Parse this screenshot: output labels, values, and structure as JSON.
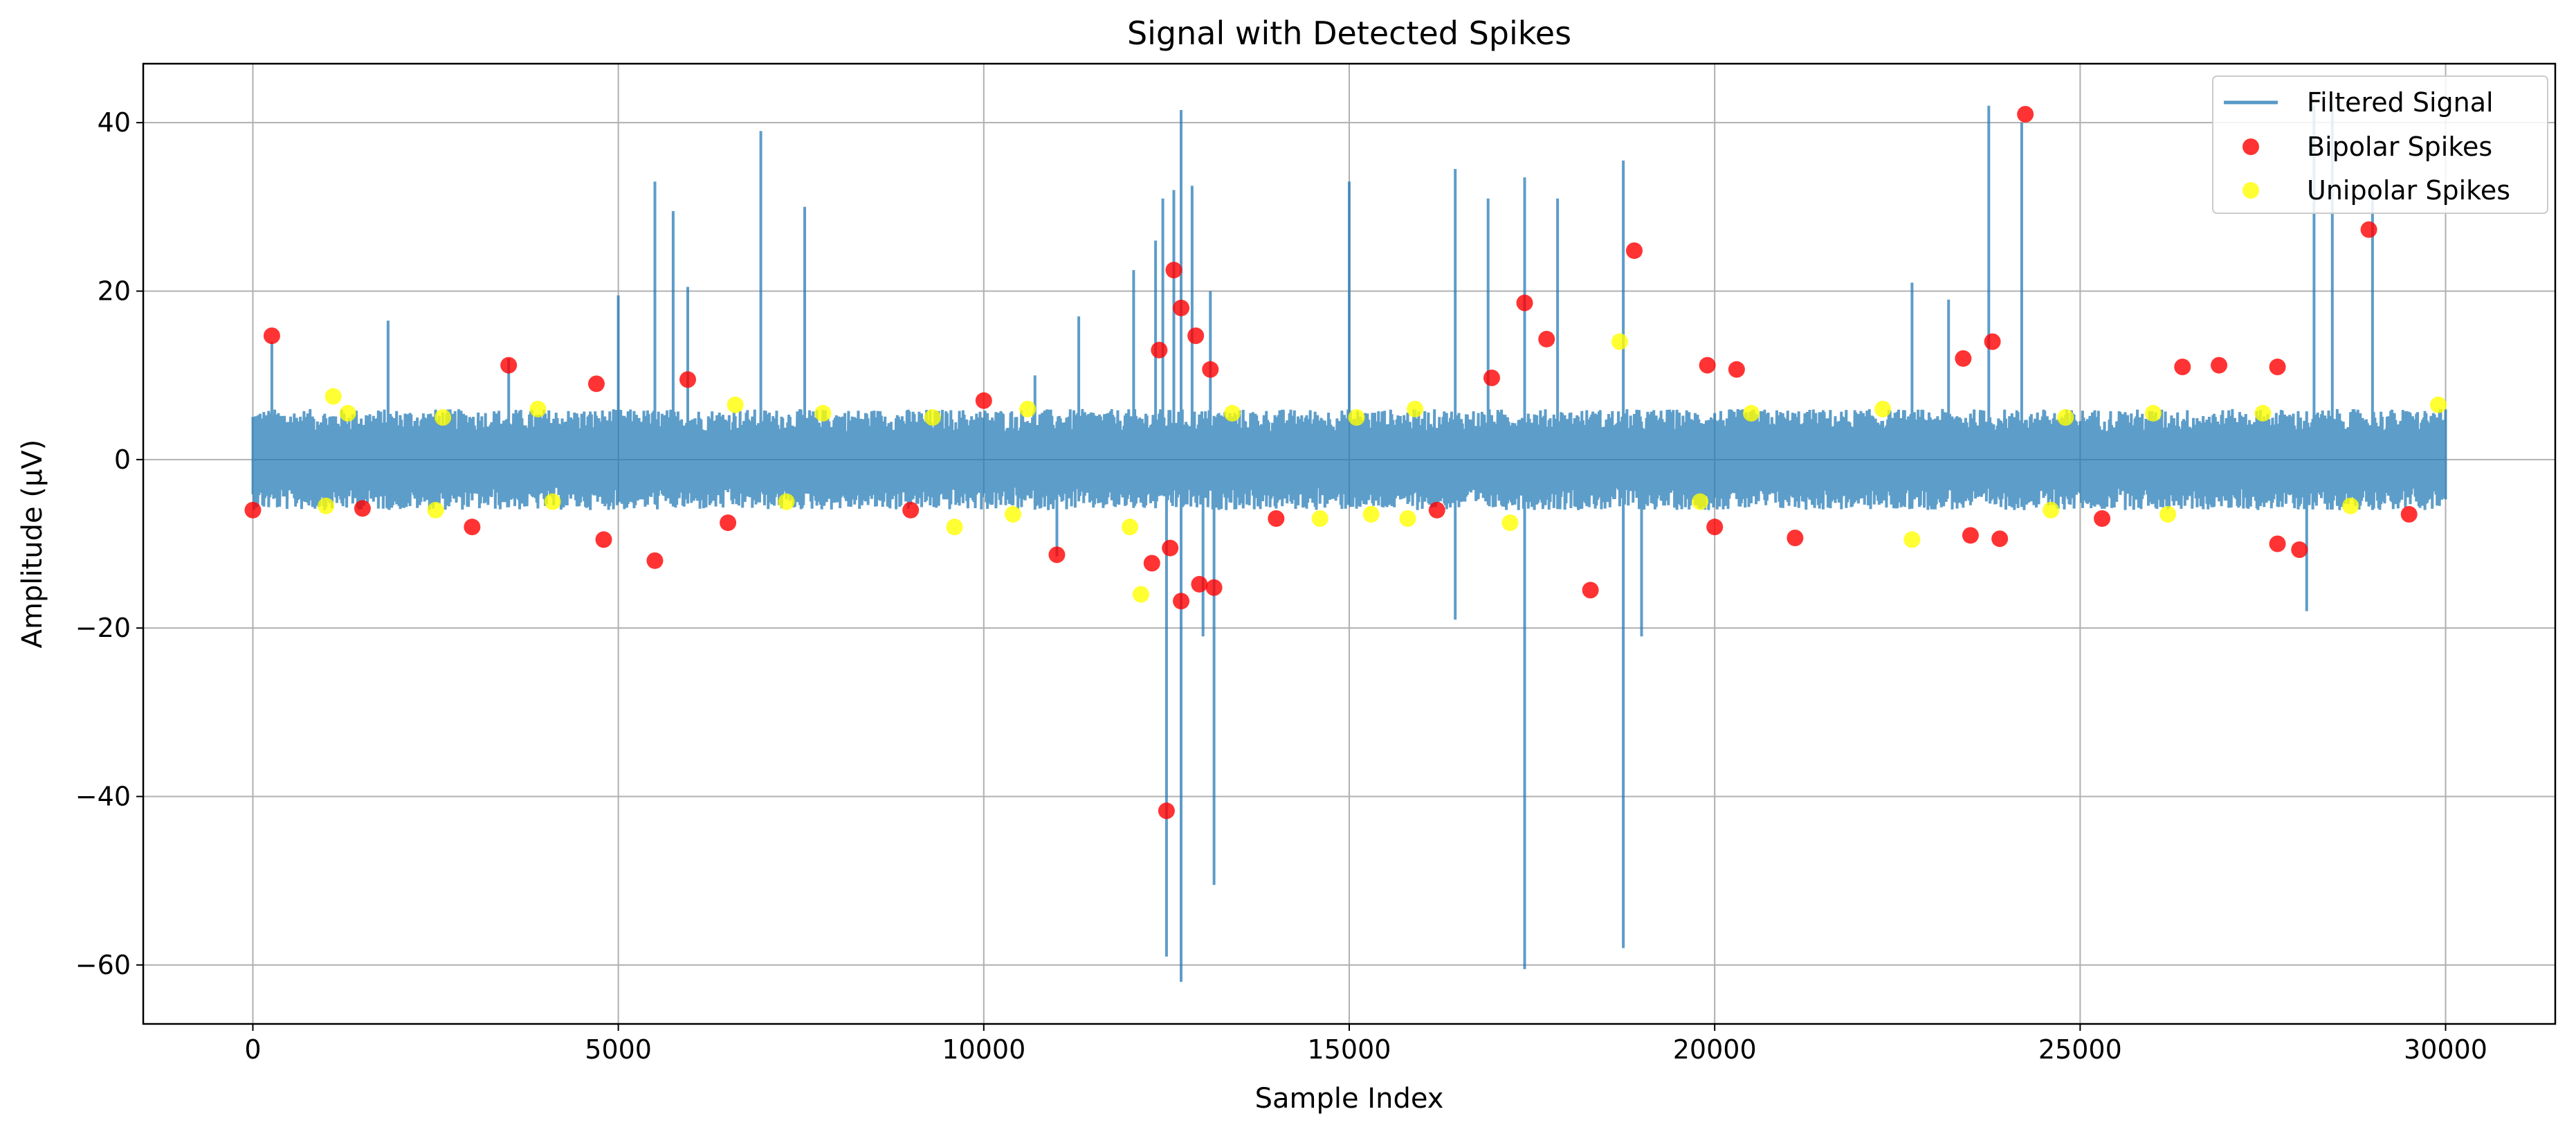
{
  "chart_data": {
    "type": "line",
    "title": "Signal with Detected Spikes",
    "xlabel": "Sample Index",
    "ylabel": "Amplitude (µV)",
    "xlim": [
      -1500,
      31500
    ],
    "ylim": [
      -67,
      47
    ],
    "xticks": [
      0,
      5000,
      10000,
      15000,
      20000,
      25000,
      30000
    ],
    "yticks": [
      -60,
      -40,
      -20,
      0,
      20,
      40
    ],
    "xtick_labels": [
      "0",
      "5000",
      "10000",
      "15000",
      "20000",
      "25000",
      "30000"
    ],
    "ytick_labels": [
      "−60",
      "−40",
      "−20",
      "0",
      "20",
      "40"
    ],
    "grid": true,
    "legend_position": "top-right",
    "colors": {
      "signal": "#1f77b4",
      "bipolar": "#ff0000",
      "unipolar": "#ffff00",
      "grid": "#b0b0b0"
    },
    "series": [
      {
        "name": "Filtered Signal",
        "kind": "line",
        "n_samples": 30000,
        "noise_band": [
          -6,
          6
        ],
        "peaks": [
          [
            260,
            14
          ],
          [
            1850,
            16.5
          ],
          [
            3500,
            12
          ],
          [
            5000,
            19.5
          ],
          [
            5500,
            33
          ],
          [
            5750,
            29.5
          ],
          [
            5950,
            20.5
          ],
          [
            6950,
            39
          ],
          [
            7550,
            30
          ],
          [
            10700,
            10
          ],
          [
            11300,
            17
          ],
          [
            12050,
            22.5
          ],
          [
            12350,
            26
          ],
          [
            12450,
            31
          ],
          [
            12600,
            32
          ],
          [
            12700,
            41.5
          ],
          [
            12850,
            32.5
          ],
          [
            13100,
            20
          ],
          [
            15000,
            33
          ],
          [
            16450,
            34.5
          ],
          [
            16900,
            31
          ],
          [
            17400,
            33.5
          ],
          [
            17850,
            31
          ],
          [
            18750,
            35.5
          ],
          [
            22700,
            21
          ],
          [
            23200,
            19
          ],
          [
            23750,
            42
          ],
          [
            24200,
            40
          ],
          [
            28200,
            42
          ],
          [
            28450,
            42
          ],
          [
            29000,
            32
          ],
          [
            12500,
            -59
          ],
          [
            12700,
            -62
          ],
          [
            13150,
            -50.5
          ],
          [
            13000,
            -21
          ],
          [
            11000,
            -11.5
          ],
          [
            17400,
            -60.5
          ],
          [
            18750,
            -58
          ],
          [
            16450,
            -19
          ],
          [
            19000,
            -21
          ],
          [
            28100,
            -18
          ]
        ]
      },
      {
        "name": "Bipolar Spikes",
        "kind": "scatter",
        "points": [
          [
            260,
            14.7
          ],
          [
            3500,
            11.2
          ],
          [
            4700,
            9
          ],
          [
            5950,
            9.5
          ],
          [
            10000,
            7
          ],
          [
            12400,
            13
          ],
          [
            12600,
            22.5
          ],
          [
            12700,
            18
          ],
          [
            12900,
            14.7
          ],
          [
            13100,
            10.7
          ],
          [
            16950,
            9.7
          ],
          [
            17400,
            18.6
          ],
          [
            17700,
            14.3
          ],
          [
            18900,
            24.8
          ],
          [
            19900,
            11.2
          ],
          [
            20300,
            10.7
          ],
          [
            23400,
            12
          ],
          [
            23800,
            14
          ],
          [
            24250,
            41
          ],
          [
            26400,
            11
          ],
          [
            26900,
            11.2
          ],
          [
            27700,
            11
          ],
          [
            28950,
            27.3
          ],
          [
            5500,
            -12
          ],
          [
            4800,
            -9.5
          ],
          [
            3000,
            -8
          ],
          [
            11000,
            -11.3
          ],
          [
            12300,
            -12.3
          ],
          [
            12500,
            -41.7
          ],
          [
            12550,
            -10.5
          ],
          [
            12700,
            -16.8
          ],
          [
            12950,
            -14.8
          ],
          [
            13150,
            -15.2
          ],
          [
            18300,
            -15.5
          ],
          [
            21100,
            -9.3
          ],
          [
            23500,
            -9
          ],
          [
            23900,
            -9.4
          ],
          [
            27700,
            -10
          ],
          [
            28000,
            -10.7
          ],
          [
            0,
            -6
          ],
          [
            1500,
            -5.8
          ],
          [
            6500,
            -7.5
          ],
          [
            9000,
            -6
          ],
          [
            14000,
            -7
          ],
          [
            16200,
            -6
          ],
          [
            20000,
            -8
          ],
          [
            25300,
            -7
          ],
          [
            29500,
            -6.5
          ]
        ]
      },
      {
        "name": "Unipolar Spikes",
        "kind": "scatter",
        "points": [
          [
            1100,
            7.5
          ],
          [
            1300,
            5.5
          ],
          [
            2600,
            5
          ],
          [
            3900,
            6
          ],
          [
            6600,
            6.5
          ],
          [
            7800,
            5.5
          ],
          [
            9300,
            5
          ],
          [
            10600,
            6
          ],
          [
            13400,
            5.5
          ],
          [
            15100,
            5
          ],
          [
            15900,
            6
          ],
          [
            18700,
            14
          ],
          [
            20500,
            5.5
          ],
          [
            22300,
            6
          ],
          [
            24800,
            5
          ],
          [
            26000,
            5.5
          ],
          [
            27500,
            5.5
          ],
          [
            29900,
            6.5
          ],
          [
            1000,
            -5.5
          ],
          [
            2500,
            -6
          ],
          [
            4100,
            -5
          ],
          [
            7300,
            -5
          ],
          [
            9600,
            -8
          ],
          [
            10400,
            -6.5
          ],
          [
            12150,
            -16
          ],
          [
            12000,
            -8
          ],
          [
            14600,
            -7
          ],
          [
            15300,
            -6.5
          ],
          [
            15800,
            -7
          ],
          [
            17200,
            -7.5
          ],
          [
            19800,
            -5
          ],
          [
            22700,
            -9.5
          ],
          [
            24600,
            -6
          ],
          [
            26200,
            -6.5
          ],
          [
            28700,
            -5.5
          ]
        ]
      }
    ]
  }
}
